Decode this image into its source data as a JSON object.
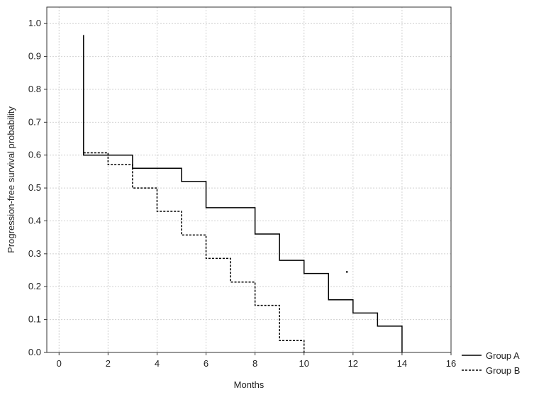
{
  "chart_data": {
    "type": "line",
    "step": true,
    "title": "",
    "xlabel": "Months",
    "ylabel": "Progression-free survival probability",
    "xlim": [
      -0.5,
      16
    ],
    "ylim": [
      0,
      1.05
    ],
    "x_ticks": [
      "0",
      "2",
      "4",
      "6",
      "8",
      "10",
      "12",
      "14",
      "16"
    ],
    "y_ticks": [
      "0.0",
      "0.1",
      "0.2",
      "0.3",
      "0.4",
      "0.5",
      "0.6",
      "0.7",
      "0.8",
      "0.9",
      "1.0"
    ],
    "grid": true,
    "legend_position": "bottom-right, outside plot",
    "series": [
      {
        "name": "Group A",
        "line_style": "solid",
        "color": "#000000",
        "x": [
          1,
          1,
          3,
          3,
          5,
          5,
          6,
          6,
          8,
          8,
          9,
          9,
          10,
          10,
          11,
          11,
          12,
          12,
          13,
          13,
          14,
          14
        ],
        "y": [
          0.965,
          0.6,
          0.6,
          0.56,
          0.56,
          0.52,
          0.52,
          0.44,
          0.44,
          0.36,
          0.36,
          0.28,
          0.28,
          0.24,
          0.24,
          0.16,
          0.16,
          0.12,
          0.12,
          0.08,
          0.08,
          0.0
        ]
      },
      {
        "name": "Group B",
        "line_style": "dashed",
        "color": "#000000",
        "x": [
          1,
          2,
          2,
          3,
          3,
          4,
          4,
          5,
          5,
          6,
          6,
          7,
          7,
          8,
          8,
          9,
          9,
          10,
          10
        ],
        "y": [
          0.607,
          0.607,
          0.571,
          0.571,
          0.5,
          0.5,
          0.429,
          0.429,
          0.357,
          0.357,
          0.286,
          0.286,
          0.214,
          0.214,
          0.143,
          0.143,
          0.036,
          0.036,
          0.0
        ]
      }
    ],
    "annotations": [
      {
        "type": "point-mark",
        "x": 11.75,
        "y": 0.245
      }
    ]
  }
}
